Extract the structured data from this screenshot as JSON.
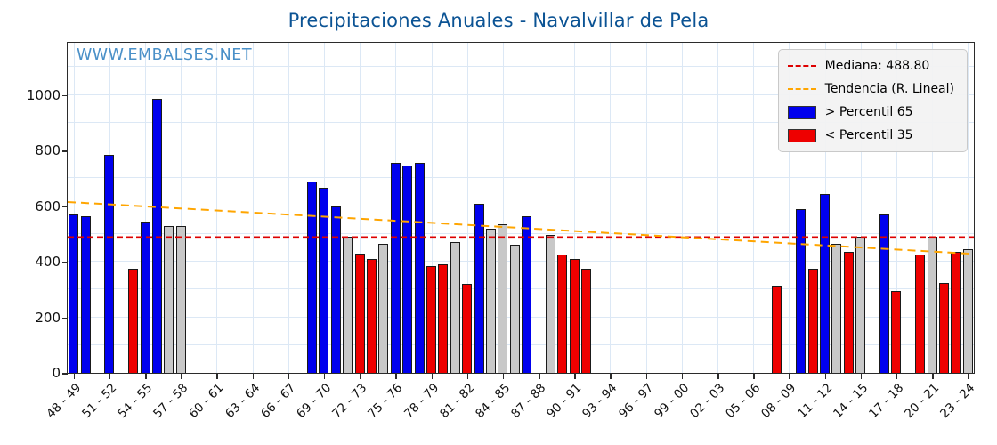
{
  "title": "Precipitaciones Anuales - Navalvillar de Pela",
  "watermark": "WWW.EMBALSES.NET",
  "legend": {
    "median": "Mediana: 488.80",
    "trend": "Tendencia (R. Lineal)",
    "above": "> Percentil 65",
    "below": "< Percentil 35"
  },
  "colors": {
    "above": "#0000ee",
    "below": "#ee0000",
    "mid": "#c8c8c8",
    "bar_edge": "#1a1a1a",
    "median_line": "#dd0000",
    "trend_line": "#ffa500",
    "title": "#0b5394",
    "watermark": "#4a90c8",
    "grid": "#dce8f5"
  },
  "chart_data": {
    "type": "bar",
    "title": "Precipitaciones Anuales - Navalvillar de Pela",
    "xlabel": "",
    "ylabel": "",
    "ylim": [
      0,
      1188
    ],
    "yticks": [
      0,
      200,
      400,
      600,
      800,
      1000
    ],
    "x_tick_every": 3,
    "median": 488.8,
    "trend_linear": {
      "left_value": 615,
      "right_value": 428
    },
    "legend_position": "upper right",
    "grid": true,
    "categories": [
      "48 - 49",
      "49 - 50",
      "50 - 51",
      "51 - 52",
      "52 - 53",
      "53 - 54",
      "54 - 55",
      "55 - 56",
      "56 - 57",
      "57 - 58",
      "58 - 59",
      "59 - 60",
      "60 - 61",
      "61 - 62",
      "62 - 63",
      "63 - 64",
      "64 - 65",
      "65 - 66",
      "66 - 67",
      "67 - 68",
      "68 - 69",
      "69 - 70",
      "70 - 71",
      "71 - 72",
      "72 - 73",
      "73 - 74",
      "74 - 75",
      "75 - 76",
      "76 - 77",
      "77 - 78",
      "78 - 79",
      "79 - 80",
      "80 - 81",
      "81 - 82",
      "82 - 83",
      "83 - 84",
      "84 - 85",
      "85 - 86",
      "86 - 87",
      "87 - 88",
      "88 - 89",
      "89 - 90",
      "90 - 91",
      "91 - 92",
      "92 - 93",
      "93 - 94",
      "94 - 95",
      "95 - 96",
      "96 - 97",
      "97 - 98",
      "98 - 99",
      "99 - 00",
      "00 - 01",
      "01 - 02",
      "02 - 03",
      "03 - 04",
      "04 - 05",
      "05 - 06",
      "06 - 07",
      "07 - 08",
      "08 - 09",
      "09 - 10",
      "10 - 11",
      "11 - 12",
      "12 - 13",
      "13 - 14",
      "14 - 15",
      "15 - 16",
      "16 - 17",
      "17 - 18",
      "18 - 19",
      "19 - 20",
      "20 - 21",
      "21 - 22",
      "22 - 23",
      "23 - 24"
    ],
    "values": [
      570,
      565,
      null,
      785,
      null,
      375,
      545,
      985,
      530,
      530,
      null,
      null,
      null,
      null,
      null,
      null,
      null,
      null,
      null,
      null,
      690,
      665,
      600,
      490,
      430,
      410,
      465,
      755,
      745,
      755,
      385,
      390,
      470,
      320,
      610,
      520,
      535,
      460,
      565,
      null,
      495,
      425,
      410,
      375,
      null,
      null,
      null,
      null,
      null,
      null,
      null,
      null,
      null,
      null,
      null,
      null,
      null,
      null,
      null,
      315,
      null,
      590,
      375,
      645,
      465,
      435,
      490,
      null,
      570,
      295,
      null,
      425,
      490,
      325,
      435,
      445
    ],
    "percentile_class": [
      "above",
      "above",
      null,
      "above",
      null,
      "below",
      "above",
      "above",
      "mid",
      "mid",
      null,
      null,
      null,
      null,
      null,
      null,
      null,
      null,
      null,
      null,
      "above",
      "above",
      "above",
      "mid",
      "below",
      "below",
      "mid",
      "above",
      "above",
      "above",
      "below",
      "below",
      "mid",
      "below",
      "above",
      "mid",
      "mid",
      "mid",
      "above",
      null,
      "mid",
      "below",
      "below",
      "below",
      null,
      null,
      null,
      null,
      null,
      null,
      null,
      null,
      null,
      null,
      null,
      null,
      null,
      null,
      null,
      "below",
      null,
      "above",
      "below",
      "above",
      "mid",
      "below",
      "mid",
      null,
      "above",
      "below",
      null,
      "below",
      "mid",
      "below",
      "below",
      "mid"
    ]
  }
}
